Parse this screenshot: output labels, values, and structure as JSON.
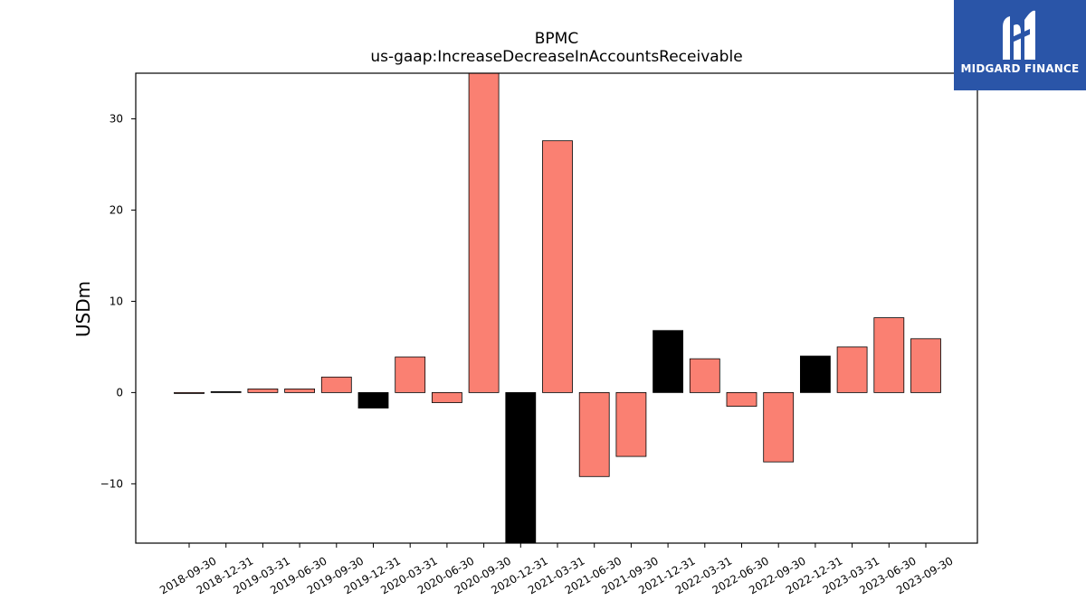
{
  "chart_data": {
    "type": "bar",
    "title": "BPMC",
    "subtitle": "us-gaap:IncreaseDecreaseInAccountsReceivable",
    "ylabel": "USDm",
    "xlabel": "",
    "ylim": [
      -16.5,
      35
    ],
    "yticks": [
      -10,
      0,
      10,
      20,
      30
    ],
    "categories": [
      "2018-09-30",
      "2018-12-31",
      "2019-03-31",
      "2019-06-30",
      "2019-09-30",
      "2019-12-31",
      "2020-03-31",
      "2020-06-30",
      "2020-09-30",
      "2020-12-31",
      "2021-03-31",
      "2021-06-30",
      "2021-09-30",
      "2021-12-31",
      "2022-03-31",
      "2022-06-30",
      "2022-09-30",
      "2022-12-31",
      "2023-03-31",
      "2023-06-30",
      "2023-09-30"
    ],
    "values": [
      -0.1,
      0.1,
      0.4,
      0.4,
      1.7,
      -1.7,
      3.9,
      -1.1,
      37.0,
      -18.5,
      27.6,
      -9.2,
      -7.0,
      6.8,
      3.7,
      -1.5,
      -7.6,
      4.0,
      5.0,
      8.2,
      5.9
    ],
    "bar_colors": [
      "salmon",
      "black",
      "salmon",
      "salmon",
      "salmon",
      "black",
      "salmon",
      "salmon",
      "salmon",
      "black",
      "salmon",
      "salmon",
      "salmon",
      "black",
      "salmon",
      "salmon",
      "salmon",
      "black",
      "salmon",
      "salmon",
      "salmon"
    ],
    "colors": {
      "salmon": "#fa8072",
      "black": "#000000"
    },
    "grid": false,
    "legend": "none"
  },
  "logo": {
    "text": "MIDGARD FINANCE",
    "background": "#2a55a8"
  }
}
